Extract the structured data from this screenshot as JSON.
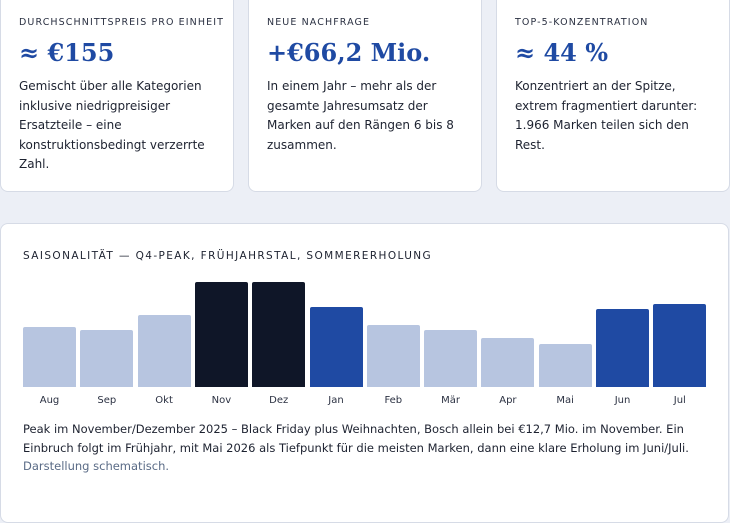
{
  "kpis": [
    {
      "label": "Durchschnittspreis pro Einheit",
      "value": "≈ €155",
      "desc": "Gemischt über alle Kategorien inklusive niedrigpreisiger Ersatzteile – eine konstruktionsbedingt verzerrte Zahl."
    },
    {
      "label": "Neue Nachfrage",
      "value": "+€66,2 Mio.",
      "desc": "In einem Jahr – mehr als der gesamte Jahresumsatz der Marken auf den Rängen 6 bis 8 zusammen."
    },
    {
      "label": "Top-5-Konzentration",
      "value": "≈ 44 %",
      "desc": "Konzentriert an der Spitze, extrem fragmentiert darunter: 1.966 Marken teilen sich den Rest."
    }
  ],
  "seasonality": {
    "title": "Saisonalität — Q4-Peak, Frühjahrstal, Sommererholung",
    "caption": "Peak im November/Dezember 2025 – Black Friday plus Weihnachten, Bosch allein bei €12,7 Mio. im November. Ein Einbruch folgt im Frühjahr, mit Mai 2026 als Tiefpunkt für die meisten Marken, dann eine klare Erholung im Juni/Juli.",
    "note": "Darstellung schematisch."
  },
  "colors": {
    "peak": "#0f1628",
    "high": "#1f4aa3",
    "base": "#b7c5e0",
    "accent": "#1f4aa3"
  },
  "chart_data": {
    "type": "bar",
    "categories": [
      "Aug",
      "Sep",
      "Okt",
      "Nov",
      "Dez",
      "Jan",
      "Feb",
      "Mär",
      "Apr",
      "Mai",
      "Jun",
      "Jul"
    ],
    "values": [
      57,
      54,
      69,
      100,
      100,
      76,
      59,
      54,
      47,
      41,
      74,
      79
    ],
    "levels": [
      "base",
      "base",
      "base",
      "peak",
      "peak",
      "high",
      "base",
      "base",
      "base",
      "base",
      "high",
      "high"
    ],
    "ylim": [
      0,
      100
    ],
    "title": "Saisonalität — Q4-Peak, Frühjahrstal, Sommererholung",
    "xlabel": "",
    "ylabel": ""
  }
}
